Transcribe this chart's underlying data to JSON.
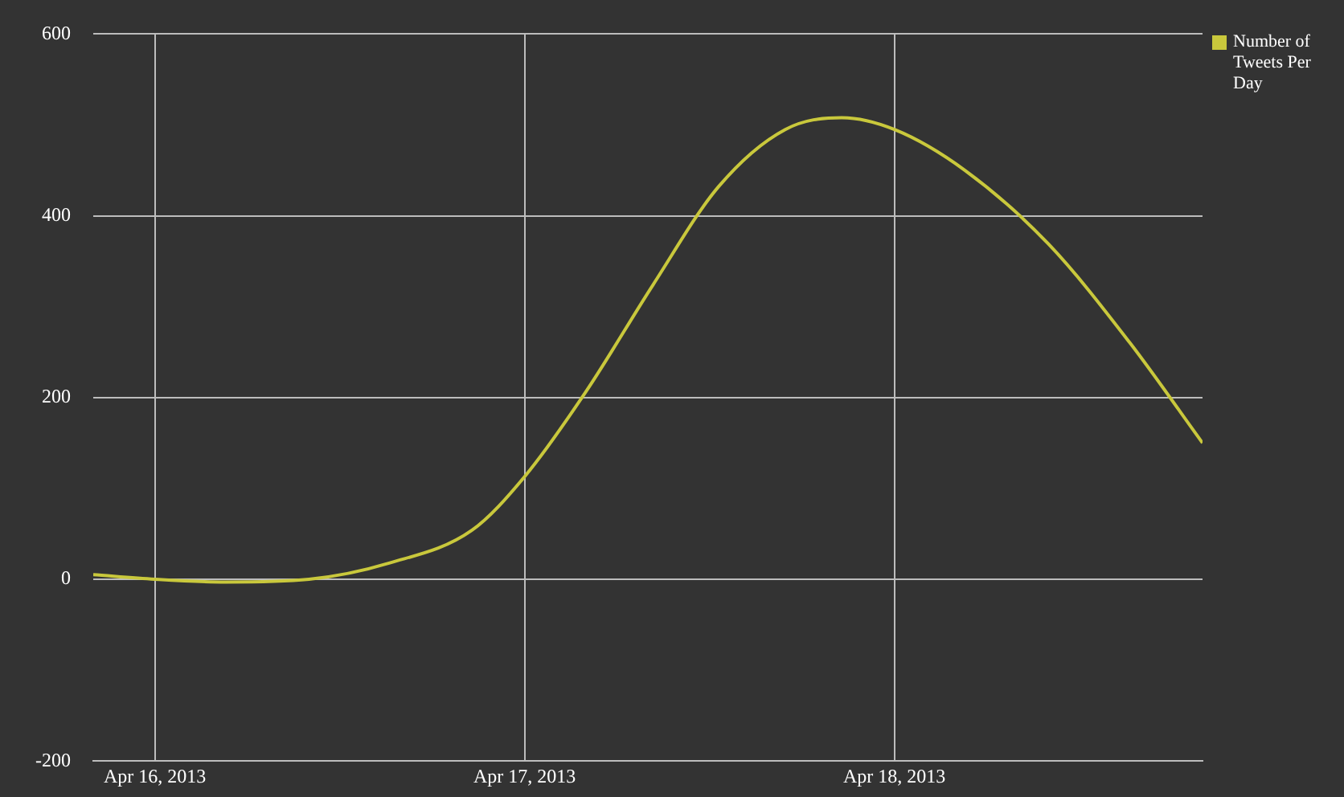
{
  "chart_data": {
    "type": "line",
    "x": [
      "2013-04-15T20:00",
      "2013-04-16",
      "2013-04-16T04:35",
      "2013-04-16T10:00",
      "2013-04-16T15:15",
      "2013-04-16T20:35",
      "2013-04-17",
      "2013-04-17T04:00",
      "2013-04-17T08:20",
      "2013-04-17T12:35",
      "2013-04-17T16:55",
      "2013-04-17T20:35",
      "2013-04-18",
      "2013-04-18T04:35",
      "2013-04-18T10:00",
      "2013-04-18T15:15",
      "2013-04-18T20:00"
    ],
    "series": [
      {
        "name": "Number of Tweets Per Day",
        "color": "#c9c83c",
        "values": [
          5,
          0,
          -3,
          0,
          18,
          54,
          113,
          207,
          324,
          432,
          495,
          508,
          495,
          450,
          369,
          261,
          150
        ]
      }
    ],
    "xlim": [
      "2013-04-15T20:00",
      "2013-04-18T20:00"
    ],
    "xticks": [
      {
        "value": "2013-04-16",
        "label": "Apr 16, 2013"
      },
      {
        "value": "2013-04-17",
        "label": "Apr 17, 2013"
      },
      {
        "value": "2013-04-18",
        "label": "Apr 18, 2013"
      }
    ],
    "ylim": [
      -200,
      600
    ],
    "yticks": [
      -200,
      0,
      200,
      400,
      600
    ],
    "grid": true,
    "legend": "top right",
    "marker": "none",
    "line_style": "solid"
  }
}
